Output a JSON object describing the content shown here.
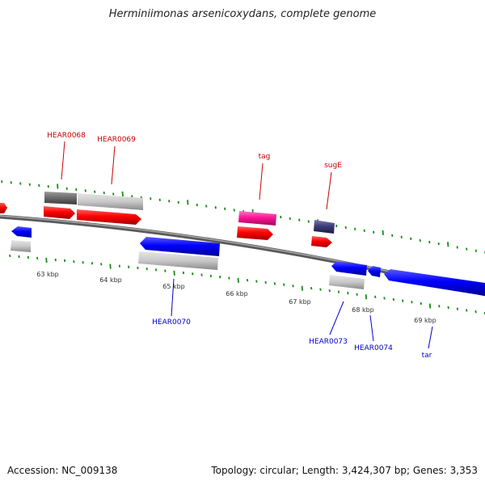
{
  "header": {
    "title": "Herminiimonas arsenicoxydans, complete genome"
  },
  "footer": {
    "accession": "Accession: NC_009138",
    "summary": "Topology: circular; Length: 3,424,307 bp; Genes: 3,353"
  },
  "colors": {
    "forward_gene": "#ff0000",
    "reverse_gene": "#0000ff",
    "trna": "#ff1493",
    "other_gene": "#3d3d7a",
    "tick": "#1a8a1a",
    "backbone": "#808080",
    "label_top": "#cc0000",
    "label_bottom": "#0000cc"
  },
  "scale_labels": [
    "63 kbp",
    "64 kbp",
    "65 kbp",
    "66 kbp",
    "67 kbp",
    "68 kbp",
    "69 kbp"
  ],
  "gene_labels_top": [
    "HEAR0068",
    "HEAR0069",
    "tag",
    "sugE"
  ],
  "gene_labels_bottom": [
    "HEAR0070",
    "HEAR0073",
    "HEAR0074",
    "tar"
  ]
}
